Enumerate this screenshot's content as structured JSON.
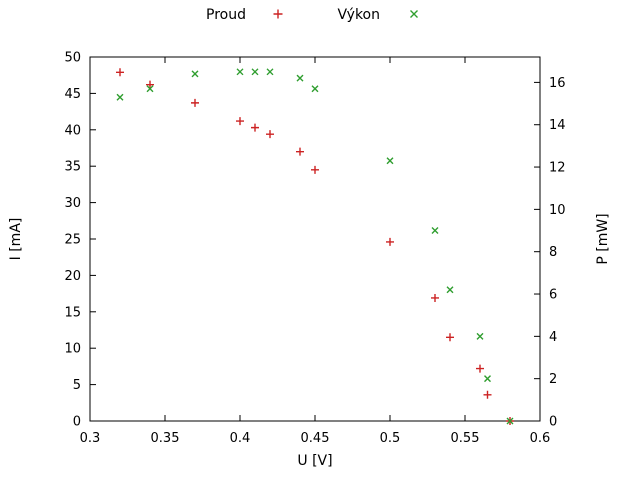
{
  "chart_data": {
    "type": "scatter",
    "title": "",
    "xlabel": "U [V]",
    "ylabel_left": "I [mA]",
    "ylabel_right": "P [mW]",
    "x_range": [
      0.3,
      0.6
    ],
    "y1_range": [
      0,
      50
    ],
    "y2_range": [
      0,
      17.2
    ],
    "grid": false,
    "legend_position": "top-center-outside",
    "axis_color": "#000000",
    "x_ticks": [
      {
        "v": 0.3,
        "label": "0.3"
      },
      {
        "v": 0.35,
        "label": "0.35"
      },
      {
        "v": 0.4,
        "label": "0.4"
      },
      {
        "v": 0.45,
        "label": "0.45"
      },
      {
        "v": 0.5,
        "label": "0.5"
      },
      {
        "v": 0.55,
        "label": "0.55"
      },
      {
        "v": 0.6,
        "label": "0.6"
      }
    ],
    "y1_ticks": [
      {
        "v": 0,
        "label": "0"
      },
      {
        "v": 5,
        "label": "5"
      },
      {
        "v": 10,
        "label": "10"
      },
      {
        "v": 15,
        "label": "15"
      },
      {
        "v": 20,
        "label": "20"
      },
      {
        "v": 25,
        "label": "25"
      },
      {
        "v": 30,
        "label": "30"
      },
      {
        "v": 35,
        "label": "35"
      },
      {
        "v": 40,
        "label": "40"
      },
      {
        "v": 45,
        "label": "45"
      },
      {
        "v": 50,
        "label": "50"
      }
    ],
    "y2_ticks": [
      {
        "v": 0,
        "label": "0"
      },
      {
        "v": 2,
        "label": "2"
      },
      {
        "v": 4,
        "label": "4"
      },
      {
        "v": 6,
        "label": "6"
      },
      {
        "v": 8,
        "label": "8"
      },
      {
        "v": 10,
        "label": "10"
      },
      {
        "v": 12,
        "label": "12"
      },
      {
        "v": 14,
        "label": "14"
      },
      {
        "v": 16,
        "label": "16"
      }
    ],
    "series": [
      {
        "name": "Proud",
        "axis": "y1",
        "marker": "plus",
        "color": "#cc2222",
        "x": [
          0.32,
          0.34,
          0.37,
          0.4,
          0.41,
          0.42,
          0.44,
          0.45,
          0.5,
          0.53,
          0.54,
          0.56,
          0.565,
          0.58
        ],
        "y": [
          47.9,
          46.2,
          43.7,
          41.2,
          40.3,
          39.4,
          37.0,
          34.5,
          24.6,
          16.9,
          11.5,
          7.2,
          3.6,
          0.0
        ]
      },
      {
        "name": "Výkon",
        "axis": "y2",
        "marker": "cross",
        "color": "#2f9e2f",
        "x": [
          0.32,
          0.34,
          0.37,
          0.4,
          0.41,
          0.42,
          0.44,
          0.45,
          0.5,
          0.53,
          0.54,
          0.56,
          0.565,
          0.58
        ],
        "y": [
          15.3,
          15.7,
          16.4,
          16.5,
          16.5,
          16.5,
          16.2,
          15.7,
          12.3,
          9.0,
          6.2,
          4.0,
          2.0,
          0.0
        ]
      }
    ]
  }
}
